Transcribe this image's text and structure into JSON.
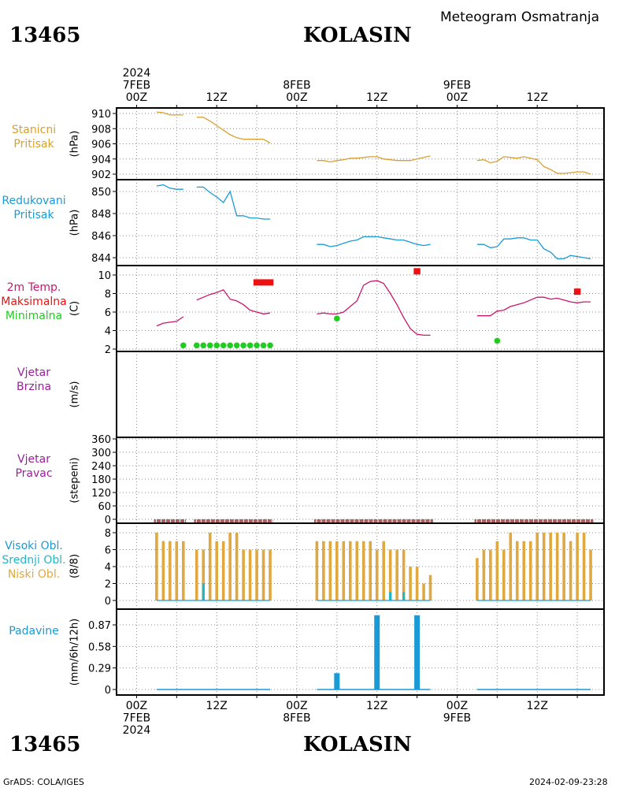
{
  "header": {
    "station_id": "13465",
    "station_name": "KOLASIN",
    "product": "Meteogram Osmatranja"
  },
  "footer": {
    "station_id": "13465",
    "station_name": "KOLASIN",
    "credit": "GrADS: COLA/IGES",
    "timestamp": "2024-02-09-23:28"
  },
  "time_axis": {
    "top_labels": [
      {
        "t": 0,
        "lines": [
          "2024",
          "7FEB",
          "00Z"
        ]
      },
      {
        "t": 12,
        "lines": [
          "12Z"
        ]
      },
      {
        "t": 24,
        "lines": [
          "8FEB",
          "00Z"
        ]
      },
      {
        "t": 36,
        "lines": [
          "12Z"
        ]
      },
      {
        "t": 48,
        "lines": [
          "9FEB",
          "00Z"
        ]
      },
      {
        "t": 60,
        "lines": [
          "12Z"
        ]
      }
    ],
    "bottom_labels": [
      {
        "t": 0,
        "lines": [
          "00Z",
          "7FEB",
          "2024"
        ]
      },
      {
        "t": 12,
        "lines": [
          "12Z"
        ]
      },
      {
        "t": 24,
        "lines": [
          "00Z",
          "8FEB"
        ]
      },
      {
        "t": 36,
        "lines": [
          "12Z"
        ]
      },
      {
        "t": 48,
        "lines": [
          "00Z",
          "9FEB"
        ]
      },
      {
        "t": 60,
        "lines": [
          "12Z"
        ]
      }
    ],
    "hours_start": -3,
    "hours_end": 70
  },
  "colors": {
    "pressure": "#d8a030",
    "reduced": "#1a9ad6",
    "temp": "#c8186e",
    "max": "#ee1010",
    "min": "#20cc20",
    "wind": "#9a209a",
    "dir_bar": "#a86060",
    "low_cloud": "#e0a840",
    "mid_cloud": "#20b8c8",
    "high_cloud": "#1a9ad6",
    "precip": "#1a9ad6"
  },
  "panel_labels": {
    "p1": {
      "lines": [
        "Stanicni",
        "Pritisak"
      ],
      "color": "#d8a030",
      "unit": "(hPa)"
    },
    "p2": {
      "lines": [
        "Redukovani",
        "Pritisak"
      ],
      "color": "#1a9ad6",
      "unit": "(hPa)"
    },
    "p3": {
      "lines": [
        "2m Temp.",
        "Maksimalna",
        "Minimalna"
      ],
      "colors": [
        "#c8186e",
        "#ee1010",
        "#20cc20"
      ],
      "unit": "(C)"
    },
    "p4": {
      "lines": [
        "Vjetar",
        "Brzina"
      ],
      "color": "#9a209a",
      "unit": "(m/s)"
    },
    "p5": {
      "lines": [
        "Vjetar",
        "Pravac"
      ],
      "color": "#9a209a",
      "unit": "(stepeni)"
    },
    "p6": {
      "lines": [
        "Visoki Obl.",
        "Srednji Obl.",
        "Niski Obl."
      ],
      "colors": [
        "#1a9ad6",
        "#20b8c8",
        "#e0a840"
      ],
      "unit": "(8/8)"
    },
    "p7": {
      "lines": [
        "Padavine"
      ],
      "color": "#1a9ad6",
      "unit": "(mm/6h/12h)"
    }
  },
  "chart_data": [
    {
      "type": "line",
      "name": "Stanicni Pritisak",
      "ylabel": "(hPa)",
      "yticks": [
        "910",
        "908",
        "906",
        "904",
        "902"
      ],
      "ylim": [
        901.3,
        911.0
      ],
      "segments": [
        {
          "x": [
            3,
            4,
            5,
            6,
            7,
            8,
            9,
            10,
            11,
            12,
            13,
            14,
            15,
            16,
            17,
            18,
            19,
            20
          ],
          "y": [
            910.2,
            910.1,
            909.8,
            909.8,
            909.8,
            null,
            909.5,
            909.5,
            909.0,
            908.4,
            907.8,
            907.2,
            906.8,
            906.6,
            906.6,
            906.6,
            906.6,
            906.1
          ]
        },
        {
          "x": [
            27,
            28,
            29,
            30,
            31,
            32,
            33,
            34,
            35,
            36,
            37,
            38,
            39,
            40,
            41,
            42,
            43,
            44
          ],
          "y": [
            903.8,
            903.8,
            903.6,
            903.8,
            903.9,
            904.1,
            904.1,
            904.2,
            904.3,
            904.3,
            904.0,
            903.9,
            903.8,
            903.8,
            903.8,
            904.0,
            904.2,
            904.4
          ]
        },
        {
          "x": [
            51,
            52,
            53,
            54,
            55,
            56,
            57,
            58,
            59,
            60,
            61,
            62,
            63,
            64,
            65,
            66,
            67,
            68
          ],
          "y": [
            903.8,
            903.9,
            903.5,
            903.7,
            904.3,
            904.2,
            904.1,
            904.3,
            904.1,
            903.9,
            903.0,
            902.6,
            902.1,
            902.1,
            902.2,
            902.3,
            902.3,
            902.0
          ]
        }
      ]
    },
    {
      "type": "line",
      "name": "Redukovani Pritisak",
      "ylabel": "(hPa)",
      "yticks": [
        "850",
        "848",
        "846",
        "844"
      ],
      "ylim": [
        843.5,
        851.0
      ],
      "segments": [
        {
          "x": [
            3,
            4,
            5,
            6,
            7,
            8,
            9,
            10,
            11,
            12,
            13,
            14,
            15,
            16,
            17,
            18,
            19,
            20
          ],
          "y": [
            850.5,
            850.6,
            850.3,
            850.2,
            850.2,
            null,
            850.4,
            850.4,
            849.9,
            849.5,
            849.0,
            850.0,
            847.8,
            847.8,
            847.6,
            847.6,
            847.5,
            847.5
          ]
        },
        {
          "x": [
            27,
            28,
            29,
            30,
            31,
            32,
            33,
            34,
            35,
            36,
            37,
            38,
            39,
            40,
            41,
            42,
            43,
            44
          ],
          "y": [
            845.2,
            845.2,
            845.0,
            845.1,
            845.3,
            845.5,
            845.6,
            845.9,
            845.9,
            845.9,
            845.8,
            845.7,
            845.6,
            845.6,
            845.4,
            845.2,
            845.1,
            845.2
          ]
        },
        {
          "x": [
            51,
            52,
            53,
            54,
            55,
            56,
            57,
            58,
            59,
            60,
            61,
            62,
            63,
            64,
            65,
            66,
            67,
            68
          ],
          "y": [
            845.2,
            845.2,
            844.9,
            845.0,
            845.7,
            845.7,
            845.8,
            845.8,
            845.6,
            845.6,
            844.8,
            844.5,
            843.9,
            843.9,
            844.2,
            844.1,
            844.0,
            843.9
          ]
        }
      ]
    },
    {
      "type": "line",
      "name": "2m Temp.",
      "ylabel": "(C)",
      "yticks": [
        "10",
        "8",
        "6",
        "4",
        "2"
      ],
      "ylim": [
        1.8,
        10.5
      ],
      "segments": [
        {
          "x": [
            3,
            4,
            5,
            6,
            7
          ],
          "y": [
            4.5,
            4.8,
            4.9,
            5.0,
            5.5
          ]
        },
        {
          "x": [
            9,
            10,
            11,
            12,
            13,
            14,
            15,
            16,
            17,
            18,
            19,
            20
          ],
          "y": [
            7.3,
            7.6,
            7.9,
            8.1,
            8.4,
            7.4,
            7.2,
            6.8,
            6.2,
            6.0,
            5.8,
            5.9
          ]
        },
        {
          "x": [
            27,
            28,
            29,
            30,
            31,
            32,
            33,
            34,
            35,
            36,
            37,
            38,
            39,
            40,
            41,
            42,
            43,
            44
          ],
          "y": [
            5.8,
            5.9,
            5.8,
            5.8,
            6.0,
            6.6,
            7.2,
            8.9,
            9.3,
            9.4,
            9.1,
            8.0,
            6.8,
            5.4,
            4.2,
            3.6,
            3.5,
            3.5
          ]
        },
        {
          "x": [
            51,
            52,
            53,
            54,
            55,
            56,
            57,
            58,
            59,
            60,
            61,
            62,
            63,
            64,
            65,
            66,
            67,
            68
          ],
          "y": [
            5.6,
            5.6,
            5.6,
            6.1,
            6.2,
            6.6,
            6.8,
            7.0,
            7.3,
            7.6,
            7.6,
            7.4,
            7.5,
            7.3,
            7.1,
            7.0,
            7.1,
            7.1
          ]
        }
      ],
      "max_markers": [
        {
          "x1": 17.5,
          "x2": 20.5,
          "y": 9.2
        },
        {
          "x1": 41.5,
          "x2": 42.5,
          "y": 10.4
        },
        {
          "x1": 65.5,
          "x2": 66.5,
          "y": 8.2
        }
      ],
      "min_markers": [
        {
          "x": 7,
          "y": 2.4
        },
        {
          "x": 9,
          "y": 2.4
        },
        {
          "x": 10,
          "y": 2.4
        },
        {
          "x": 11,
          "y": 2.4
        },
        {
          "x": 12,
          "y": 2.4
        },
        {
          "x": 13,
          "y": 2.4
        },
        {
          "x": 14,
          "y": 2.4
        },
        {
          "x": 15,
          "y": 2.4
        },
        {
          "x": 16,
          "y": 2.4
        },
        {
          "x": 17,
          "y": 2.4
        },
        {
          "x": 18,
          "y": 2.4
        },
        {
          "x": 19,
          "y": 2.4
        },
        {
          "x": 20,
          "y": 2.4
        },
        {
          "x": 30,
          "y": 5.3
        },
        {
          "x": 54,
          "y": 2.9
        }
      ]
    },
    {
      "type": "line",
      "name": "Vjetar Brzina",
      "ylabel": "(m/s)",
      "yticks": [],
      "segments": []
    },
    {
      "type": "bar",
      "name": "Vjetar Pravac",
      "ylabel": "(stepeni)",
      "yticks": [
        "360",
        "300",
        "240",
        "180",
        "120",
        "60",
        "0"
      ],
      "ylim": [
        -15,
        370
      ],
      "bars": [
        {
          "x1": 2.6,
          "x2": 7.4
        },
        {
          "x1": 8.6,
          "x2": 20.4
        },
        {
          "x1": 26.6,
          "x2": 44.4
        },
        {
          "x1": 50.6,
          "x2": 68.4
        }
      ]
    },
    {
      "type": "bar",
      "name": "Oblacnost",
      "ylabel": "(8/8)",
      "yticks": [
        "8",
        "6",
        "4",
        "2",
        "0"
      ],
      "ylim": [
        -0.2,
        8.6
      ],
      "low": {
        "x": [
          3,
          4,
          5,
          6,
          7,
          9,
          10,
          11,
          12,
          13,
          14,
          15,
          16,
          17,
          18,
          19,
          20,
          27,
          28,
          29,
          30,
          31,
          32,
          33,
          34,
          35,
          36,
          37,
          38,
          39,
          40,
          41,
          42,
          43,
          44,
          51,
          52,
          53,
          54,
          55,
          56,
          57,
          58,
          59,
          60,
          61,
          62,
          63,
          64,
          65,
          66,
          67,
          68
        ],
        "values": [
          8,
          7,
          7,
          7,
          7,
          6,
          6,
          8,
          7,
          7,
          8,
          8,
          6,
          6,
          6,
          6,
          6,
          7,
          7,
          7,
          7,
          7,
          7,
          7,
          7,
          7,
          6,
          7,
          6,
          6,
          6,
          4,
          4,
          2,
          3,
          5,
          6,
          6,
          7,
          6,
          8,
          7,
          7,
          7,
          8,
          8,
          8,
          8,
          8,
          7,
          8,
          8,
          6
        ]
      },
      "mid": {
        "x": [
          10,
          38,
          40
        ],
        "values": [
          2,
          1,
          1
        ]
      },
      "high": {
        "x": [],
        "values": []
      }
    },
    {
      "type": "bar",
      "name": "Padavine",
      "ylabel": "(mm/6h/12h)",
      "yticks": [
        "0.87",
        "0.58",
        "0.29",
        "0"
      ],
      "ylim": [
        -0.03,
        1.03
      ],
      "bars": [
        {
          "x": 30,
          "value": 0.22
        },
        {
          "x": 36,
          "value": 1.0
        },
        {
          "x": 42,
          "value": 1.0
        }
      ],
      "baseline_segments": [
        [
          3,
          20
        ],
        [
          27,
          44
        ],
        [
          51,
          68
        ]
      ]
    }
  ]
}
